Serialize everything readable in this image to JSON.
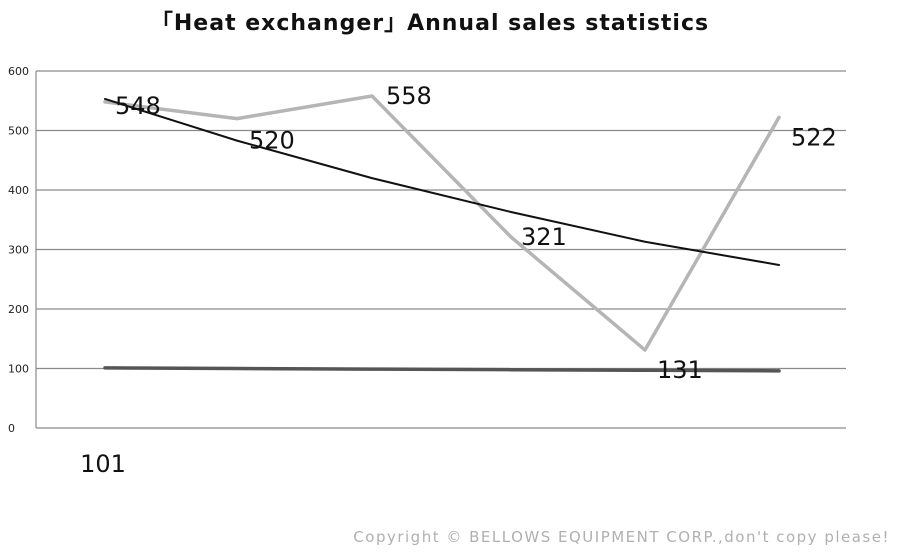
{
  "chart_data": {
    "type": "line",
    "title": "「Heat exchanger」Annual sales statistics",
    "xlabel": "",
    "ylabel": "",
    "ylim": [
      0,
      600
    ],
    "yticks": [
      "0",
      "100",
      "200",
      "300",
      "400",
      "500",
      "600"
    ],
    "categories": [
      "101",
      "",
      "",
      "",
      "",
      ""
    ],
    "series": [
      {
        "name": "",
        "values": [
          548,
          520,
          558,
          321,
          131,
          522
        ],
        "color": "#b5b5b5",
        "labels": [
          "548",
          "520",
          "558",
          "321",
          "131",
          "522"
        ]
      },
      {
        "name": "",
        "values": [
          553,
          483,
          420,
          363,
          313,
          274
        ],
        "color": "#111111",
        "trend": true
      },
      {
        "name": "",
        "values": [
          101,
          100,
          99,
          98,
          97,
          96
        ],
        "color": "#555555"
      }
    ],
    "grid": true,
    "legend": "none"
  },
  "copyright": "Copyright © BELLOWS EQUIPMENT CORP.,don't copy please!"
}
